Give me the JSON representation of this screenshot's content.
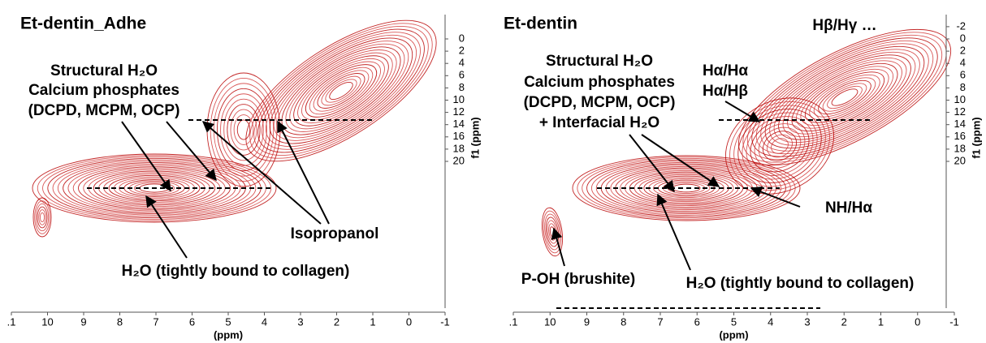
{
  "panels": [
    {
      "title": "Et-dentin_Adhe",
      "annotations": [
        "Structural H₂O",
        "Calcium phosphates",
        "(DCPD, MCPM, OCP)",
        "Isopropanol",
        "H₂O (tightly bound to collagen)"
      ],
      "x_ticks": [
        ".1",
        "10",
        "9",
        "8",
        "7",
        "6",
        "5",
        "4",
        "3",
        "2",
        "1",
        "0",
        "-1"
      ],
      "x_label": "(ppm)",
      "y_ticks": [
        "0",
        "2",
        "4",
        "6",
        "8",
        "10",
        "12",
        "14",
        "16",
        "18",
        "20"
      ],
      "y_label": "f1 (ppm)"
    },
    {
      "title": "Et-dentin",
      "annotations": [
        "Hβ/Hγ …",
        "Hα/Hα",
        "Hα/Hβ",
        "Structural H₂O",
        "Calcium phosphates",
        "(DCPD, MCPM, OCP)",
        "+ Interfacial H₂O",
        "NH/Hα",
        "P-OH (brushite)",
        "H₂O (tightly bound to collagen)"
      ],
      "x_ticks": [
        ".1",
        "10",
        "9",
        "8",
        "7",
        "6",
        "5",
        "4",
        "3",
        "2",
        "1",
        "0",
        "-1"
      ],
      "x_label": "(ppm)",
      "y_ticks": [
        "-2",
        "0",
        "2",
        "4",
        "6",
        "8",
        "10",
        "12",
        "14",
        "16",
        "18",
        "20"
      ],
      "y_label": "f1 (ppm)"
    }
  ]
}
